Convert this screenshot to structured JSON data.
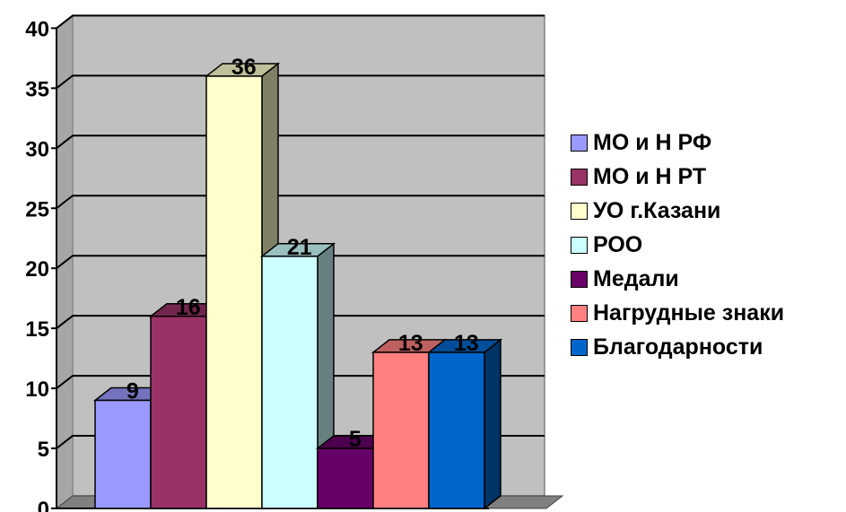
{
  "chart_data": {
    "type": "bar",
    "three_d": true,
    "categories": [
      "МО и Н РФ",
      "МО и Н РТ",
      "УО г.Казани",
      "РОО",
      "Медали",
      "Нагрудные знаки",
      "Благодарности"
    ],
    "values": [
      9,
      16,
      36,
      21,
      5,
      13,
      13
    ],
    "colors": [
      "#9999FF",
      "#993366",
      "#FFFFCC",
      "#CCFFFF",
      "#660066",
      "#FF8080",
      "#0066CC"
    ],
    "data_labels": [
      "9",
      "16",
      "36",
      "21",
      "5",
      "13",
      "13"
    ],
    "y_ticks": [
      "0",
      "5",
      "10",
      "15",
      "20",
      "25",
      "30",
      "35",
      "40"
    ],
    "ylim": [
      0,
      40
    ],
    "grid": true,
    "legend_position": "right",
    "wall_color": "#C0C0C0"
  }
}
